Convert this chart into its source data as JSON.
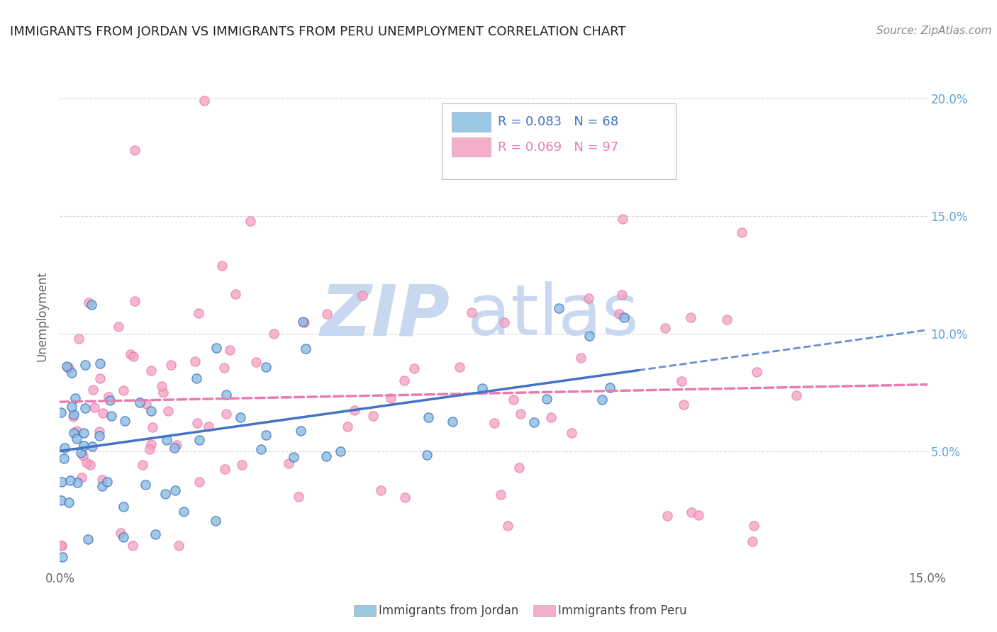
{
  "title": "IMMIGRANTS FROM JORDAN VS IMMIGRANTS FROM PERU UNEMPLOYMENT CORRELATION CHART",
  "source_text": "Source: ZipAtlas.com",
  "ylabel": "Unemployment",
  "xlim": [
    0.0,
    0.15
  ],
  "ylim": [
    0.0,
    0.215
  ],
  "jordan_color": "#89bde0",
  "peru_color": "#f4a0c0",
  "jordan_line_color": "#4472c4",
  "peru_line_color": "#e87cb0",
  "jordan_R": 0.083,
  "jordan_N": 68,
  "peru_R": 0.069,
  "peru_N": 97,
  "background_color": "#ffffff",
  "grid_color": "#cccccc",
  "watermark_zip": "ZIP",
  "watermark_atlas": "atlas",
  "watermark_color": "#c8d8ee",
  "title_fontsize": 13,
  "source_fontsize": 11,
  "axis_label_color": "#888888",
  "right_tick_color": "#5ba3d9",
  "legend_text_color": "#4472c4",
  "legend_peru_text_color": "#e87cb0"
}
